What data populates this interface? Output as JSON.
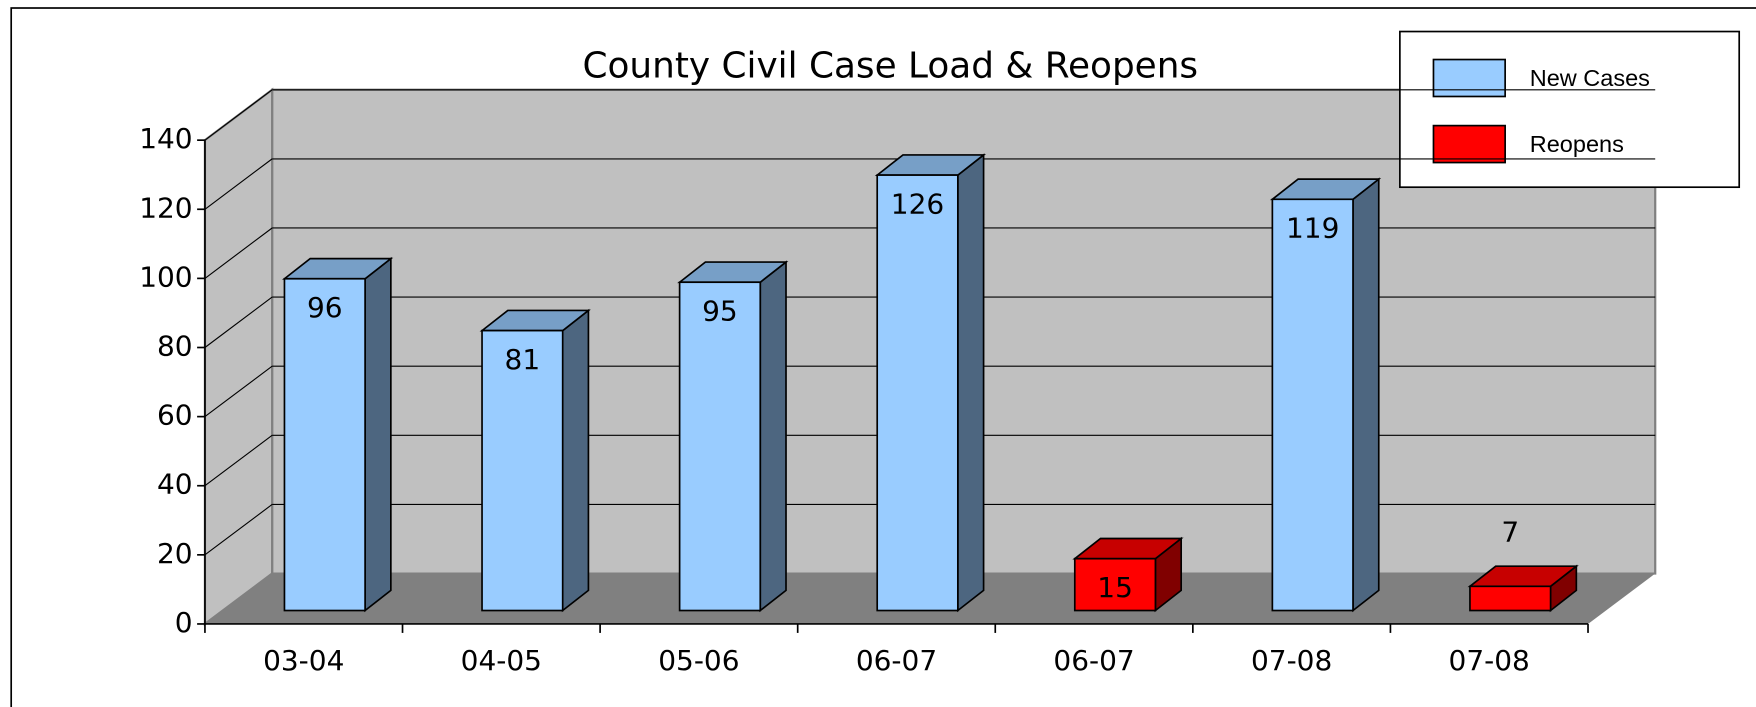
{
  "chart_data": {
    "type": "bar3d",
    "title": "County Civil Case Load & Reopens",
    "categories": [
      "03-04",
      "04-05",
      "05-06",
      "06-07",
      "06-07",
      "07-08",
      "07-08"
    ],
    "series": [
      {
        "name": "New Cases",
        "color": "#99ccff",
        "values": [
          96,
          81,
          95,
          126,
          null,
          119,
          null
        ]
      },
      {
        "name": "Reopens",
        "color": "#ff0000",
        "values": [
          null,
          null,
          null,
          null,
          15,
          null,
          7
        ]
      }
    ],
    "ylim": [
      0,
      140
    ],
    "yticks": [
      0,
      20,
      40,
      60,
      80,
      100,
      120,
      140
    ],
    "grid": true,
    "legend": "top-right"
  }
}
